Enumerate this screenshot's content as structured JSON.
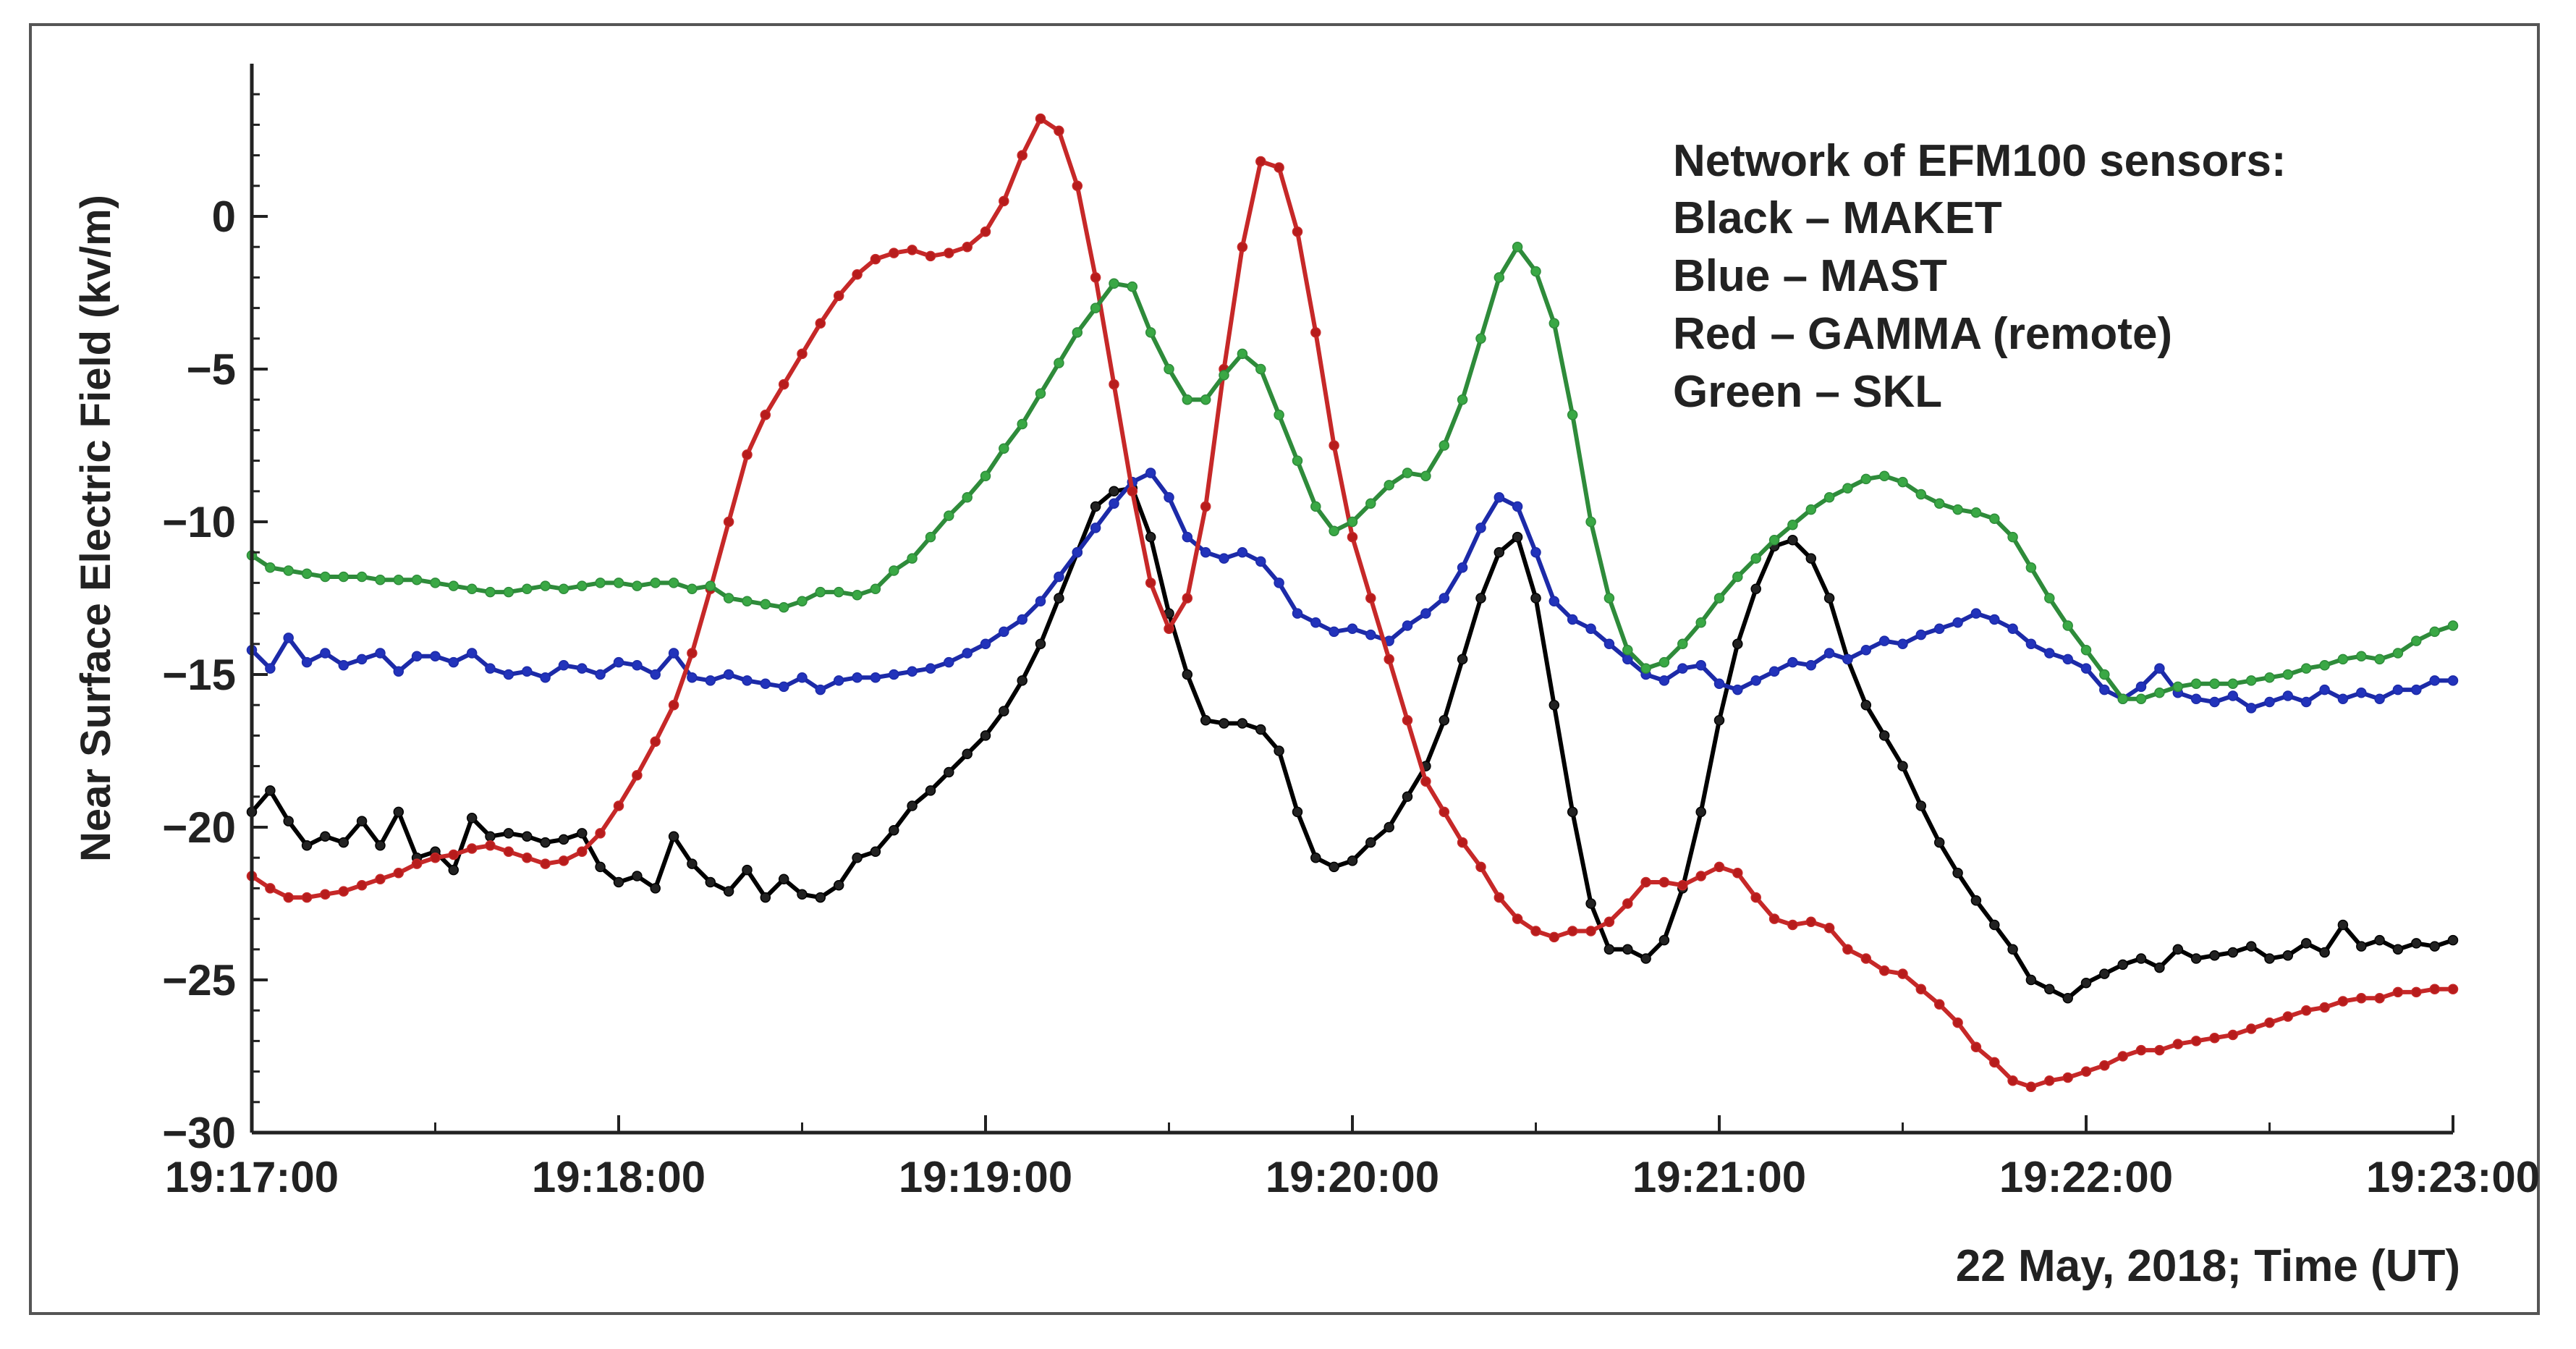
{
  "chart_data": {
    "type": "line",
    "title": "",
    "xlabel": "22 May, 2018; Time (UT)",
    "ylabel": "Near Surface Electric Field (kv/m)",
    "x_tick_labels": [
      "19:17:00",
      "19:18:00",
      "19:19:00",
      "19:20:00",
      "19:21:00",
      "19:22:00",
      "19:23:00"
    ],
    "x_ticks_sec": [
      0,
      60,
      120,
      180,
      240,
      300,
      360
    ],
    "xlim_sec": [
      0,
      360
    ],
    "y_tick_labels": [
      "0",
      "−5",
      "−10",
      "−15",
      "−20",
      "−25",
      "−30"
    ],
    "y_ticks": [
      0,
      -5,
      -10,
      -15,
      -20,
      -25,
      -30
    ],
    "ylim": [
      -30,
      5
    ],
    "grid": false,
    "legend": {
      "placement": "top-right",
      "lines": [
        "Network of EFM100 sensors:",
        "Black – MAKET",
        "Blue – MAST",
        "Red – GAMMA (remote)",
        "Green – SKL"
      ]
    },
    "series": [
      {
        "color": "#000000",
        "marker": "#222222",
        "x": [
          0,
          3,
          6,
          9,
          12,
          15,
          18,
          21,
          24,
          27,
          30,
          33,
          36,
          39,
          42,
          45,
          48,
          51,
          54,
          57,
          60,
          63,
          66,
          69,
          72,
          75,
          78,
          81,
          84,
          87,
          90,
          93,
          96,
          99,
          102,
          105,
          108,
          111,
          114,
          117,
          120,
          123,
          126,
          129,
          132,
          135,
          138,
          141,
          144,
          147,
          150,
          153,
          156,
          159,
          162,
          165,
          168,
          171,
          174,
          177,
          180,
          183,
          186,
          189,
          192,
          195,
          198,
          201,
          204,
          207,
          210,
          213,
          216,
          219,
          222,
          225,
          228,
          231,
          234,
          237,
          240,
          243,
          246,
          249,
          252,
          255,
          258,
          261,
          264,
          267,
          270,
          273,
          276,
          279,
          282,
          285,
          288,
          291,
          294,
          297,
          300,
          303,
          306,
          309,
          312,
          315,
          318,
          321,
          324,
          327,
          330,
          333,
          336,
          339,
          342,
          345,
          348,
          351,
          354,
          357,
          360
        ],
        "values": [
          -19.5,
          -18.8,
          -19.8,
          -20.6,
          -20.3,
          -20.5,
          -19.8,
          -20.6,
          -19.5,
          -21,
          -20.8,
          -21.4,
          -19.7,
          -20.3,
          -20.2,
          -20.3,
          -20.5,
          -20.4,
          -20.2,
          -21.3,
          -21.8,
          -21.6,
          -22,
          -20.3,
          -21.2,
          -21.8,
          -22.1,
          -21.4,
          -22.3,
          -21.7,
          -22.2,
          -22.3,
          -21.9,
          -21,
          -20.8,
          -20.1,
          -19.3,
          -18.8,
          -18.2,
          -17.6,
          -17,
          -16.2,
          -15.2,
          -14,
          -12.5,
          -11,
          -9.5,
          -9,
          -8.9,
          -10.5,
          -13,
          -15,
          -16.5,
          -16.6,
          -16.6,
          -16.8,
          -17.5,
          -19.5,
          -21,
          -21.3,
          -21.1,
          -20.5,
          -20,
          -19,
          -18,
          -16.5,
          -14.5,
          -12.5,
          -11,
          -10.5,
          -12.5,
          -16,
          -19.5,
          -22.5,
          -24,
          -24,
          -24.3,
          -23.7,
          -22,
          -19.5,
          -16.5,
          -14,
          -12.2,
          -10.8,
          -10.6,
          -11.2,
          -12.5,
          -14.5,
          -16,
          -17,
          -18,
          -19.3,
          -20.5,
          -21.5,
          -22.4,
          -23.2,
          -24,
          -25,
          -25.3,
          -25.6,
          -25.1,
          -24.8,
          -24.5,
          -24.3,
          -24.6,
          -24,
          -24.3,
          -24.2,
          -24.1,
          -23.9,
          -24.3,
          -24.2,
          -23.8,
          -24.1,
          -23.2,
          -23.9,
          -23.7,
          -24,
          -23.8,
          -23.9,
          -23.7
        ]
      },
      {
        "color": "#1c2aa8",
        "marker": "#2233bb",
        "x": [
          0,
          3,
          6,
          9,
          12,
          15,
          18,
          21,
          24,
          27,
          30,
          33,
          36,
          39,
          42,
          45,
          48,
          51,
          54,
          57,
          60,
          63,
          66,
          69,
          72,
          75,
          78,
          81,
          84,
          87,
          90,
          93,
          96,
          99,
          102,
          105,
          108,
          111,
          114,
          117,
          120,
          123,
          126,
          129,
          132,
          135,
          138,
          141,
          144,
          147,
          150,
          153,
          156,
          159,
          162,
          165,
          168,
          171,
          174,
          177,
          180,
          183,
          186,
          189,
          192,
          195,
          198,
          201,
          204,
          207,
          210,
          213,
          216,
          219,
          222,
          225,
          228,
          231,
          234,
          237,
          240,
          243,
          246,
          249,
          252,
          255,
          258,
          261,
          264,
          267,
          270,
          273,
          276,
          279,
          282,
          285,
          288,
          291,
          294,
          297,
          300,
          303,
          306,
          309,
          312,
          315,
          318,
          321,
          324,
          327,
          330,
          333,
          336,
          339,
          342,
          345,
          348,
          351,
          354,
          357,
          360
        ],
        "values": [
          -14.2,
          -14.8,
          -13.8,
          -14.6,
          -14.3,
          -14.7,
          -14.5,
          -14.3,
          -14.9,
          -14.4,
          -14.4,
          -14.6,
          -14.3,
          -14.8,
          -15,
          -14.9,
          -15.1,
          -14.7,
          -14.8,
          -15,
          -14.6,
          -14.7,
          -15,
          -14.3,
          -15.1,
          -15.2,
          -15,
          -15.2,
          -15.3,
          -15.4,
          -15.1,
          -15.5,
          -15.2,
          -15.1,
          -15.1,
          -15,
          -14.9,
          -14.8,
          -14.6,
          -14.3,
          -14,
          -13.6,
          -13.2,
          -12.6,
          -11.8,
          -11,
          -10.2,
          -9.4,
          -8.7,
          -8.4,
          -9.2,
          -10.5,
          -11,
          -11.2,
          -11,
          -11.3,
          -12,
          -13,
          -13.3,
          -13.6,
          -13.5,
          -13.7,
          -13.9,
          -13.4,
          -13,
          -12.5,
          -11.5,
          -10.2,
          -9.2,
          -9.5,
          -11,
          -12.6,
          -13.2,
          -13.5,
          -14,
          -14.5,
          -15,
          -15.2,
          -14.8,
          -14.7,
          -15.3,
          -15.5,
          -15.2,
          -14.9,
          -14.6,
          -14.7,
          -14.3,
          -14.5,
          -14.2,
          -13.9,
          -14,
          -13.7,
          -13.5,
          -13.3,
          -13,
          -13.2,
          -13.5,
          -14,
          -14.3,
          -14.5,
          -14.8,
          -15.5,
          -15.8,
          -15.4,
          -14.8,
          -15.6,
          -15.8,
          -15.9,
          -15.7,
          -16.1,
          -15.9,
          -15.7,
          -15.9,
          -15.5,
          -15.8,
          -15.6,
          -15.8,
          -15.5,
          -15.5,
          -15.2,
          -15.2
        ]
      },
      {
        "color": "#c62828",
        "marker": "#b71c1c",
        "x": [
          0,
          3,
          6,
          9,
          12,
          15,
          18,
          21,
          24,
          27,
          30,
          33,
          36,
          39,
          42,
          45,
          48,
          51,
          54,
          57,
          60,
          63,
          66,
          69,
          72,
          75,
          78,
          81,
          84,
          87,
          90,
          93,
          96,
          99,
          102,
          105,
          108,
          111,
          114,
          117,
          120,
          123,
          126,
          129,
          132,
          135,
          138,
          141,
          144,
          147,
          150,
          153,
          156,
          159,
          162,
          165,
          168,
          171,
          174,
          177,
          180,
          183,
          186,
          189,
          192,
          195,
          198,
          201,
          204,
          207,
          210,
          213,
          216,
          219,
          222,
          225,
          228,
          231,
          234,
          237,
          240,
          243,
          246,
          249,
          252,
          255,
          258,
          261,
          264,
          267,
          270,
          273,
          276,
          279,
          282,
          285,
          288,
          291,
          294,
          297,
          300,
          303,
          306,
          309,
          312,
          315,
          318,
          321,
          324,
          327,
          330,
          333,
          336,
          339,
          342,
          345,
          348,
          351,
          354,
          357,
          360
        ],
        "values": [
          -21.6,
          -22,
          -22.3,
          -22.3,
          -22.2,
          -22.1,
          -21.9,
          -21.7,
          -21.5,
          -21.2,
          -21,
          -20.9,
          -20.7,
          -20.6,
          -20.8,
          -21,
          -21.2,
          -21.1,
          -20.8,
          -20.2,
          -19.3,
          -18.3,
          -17.2,
          -16,
          -14.3,
          -12.2,
          -10,
          -7.8,
          -6.5,
          -5.5,
          -4.5,
          -3.5,
          -2.6,
          -1.9,
          -1.4,
          -1.2,
          -1.1,
          -1.3,
          -1.2,
          -1,
          -0.5,
          0.5,
          2,
          3.2,
          2.8,
          1,
          -2,
          -5.5,
          -9,
          -12,
          -13.5,
          -12.5,
          -9.5,
          -5,
          -1,
          1.8,
          1.6,
          -0.5,
          -3.8,
          -7.5,
          -10.5,
          -12.5,
          -14.5,
          -16.5,
          -18.5,
          -19.5,
          -20.5,
          -21.3,
          -22.3,
          -23,
          -23.4,
          -23.6,
          -23.4,
          -23.4,
          -23.1,
          -22.5,
          -21.8,
          -21.8,
          -21.9,
          -21.6,
          -21.3,
          -21.5,
          -22.3,
          -23,
          -23.2,
          -23.1,
          -23.3,
          -24,
          -24.3,
          -24.7,
          -24.8,
          -25.3,
          -25.8,
          -26.4,
          -27.2,
          -27.7,
          -28.3,
          -28.5,
          -28.3,
          -28.2,
          -28,
          -27.8,
          -27.5,
          -27.3,
          -27.3,
          -27.1,
          -27,
          -26.9,
          -26.8,
          -26.6,
          -26.4,
          -26.2,
          -26,
          -25.9,
          -25.7,
          -25.6,
          -25.6,
          -25.4,
          -25.4,
          -25.3,
          -25.3
        ]
      },
      {
        "color": "#2e8b3a",
        "marker": "#3aa845",
        "x": [
          0,
          3,
          6,
          9,
          12,
          15,
          18,
          21,
          24,
          27,
          30,
          33,
          36,
          39,
          42,
          45,
          48,
          51,
          54,
          57,
          60,
          63,
          66,
          69,
          72,
          75,
          78,
          81,
          84,
          87,
          90,
          93,
          96,
          99,
          102,
          105,
          108,
          111,
          114,
          117,
          120,
          123,
          126,
          129,
          132,
          135,
          138,
          141,
          144,
          147,
          150,
          153,
          156,
          159,
          162,
          165,
          168,
          171,
          174,
          177,
          180,
          183,
          186,
          189,
          192,
          195,
          198,
          201,
          204,
          207,
          210,
          213,
          216,
          219,
          222,
          225,
          228,
          231,
          234,
          237,
          240,
          243,
          246,
          249,
          252,
          255,
          258,
          261,
          264,
          267,
          270,
          273,
          276,
          279,
          282,
          285,
          288,
          291,
          294,
          297,
          300,
          303,
          306,
          309,
          312,
          315,
          318,
          321,
          324,
          327,
          330,
          333,
          336,
          339,
          342,
          345,
          348,
          351,
          354,
          357,
          360
        ],
        "values": [
          -11.1,
          -11.5,
          -11.6,
          -11.7,
          -11.8,
          -11.8,
          -11.8,
          -11.9,
          -11.9,
          -11.9,
          -12,
          -12.1,
          -12.2,
          -12.3,
          -12.3,
          -12.2,
          -12.1,
          -12.2,
          -12.1,
          -12,
          -12,
          -12.1,
          -12,
          -12,
          -12.2,
          -12.1,
          -12.5,
          -12.6,
          -12.7,
          -12.8,
          -12.6,
          -12.3,
          -12.3,
          -12.4,
          -12.2,
          -11.6,
          -11.2,
          -10.5,
          -9.8,
          -9.2,
          -8.5,
          -7.6,
          -6.8,
          -5.8,
          -4.8,
          -3.8,
          -3,
          -2.2,
          -2.3,
          -3.8,
          -5,
          -6,
          -6,
          -5.2,
          -4.5,
          -5,
          -6.5,
          -8,
          -9.5,
          -10.3,
          -10,
          -9.4,
          -8.8,
          -8.4,
          -8.5,
          -7.5,
          -6,
          -4,
          -2,
          -1,
          -1.8,
          -3.5,
          -6.5,
          -10,
          -12.5,
          -14.2,
          -14.8,
          -14.6,
          -14,
          -13.3,
          -12.5,
          -11.8,
          -11.2,
          -10.6,
          -10.1,
          -9.6,
          -9.2,
          -8.9,
          -8.6,
          -8.5,
          -8.7,
          -9.1,
          -9.4,
          -9.6,
          -9.7,
          -9.9,
          -10.5,
          -11.5,
          -12.5,
          -13.4,
          -14.2,
          -15,
          -15.8,
          -15.8,
          -15.6,
          -15.4,
          -15.3,
          -15.3,
          -15.3,
          -15.2,
          -15.1,
          -15,
          -14.8,
          -14.7,
          -14.5,
          -14.4,
          -14.5,
          -14.3,
          -13.9,
          -13.6,
          -13.4
        ]
      }
    ]
  }
}
